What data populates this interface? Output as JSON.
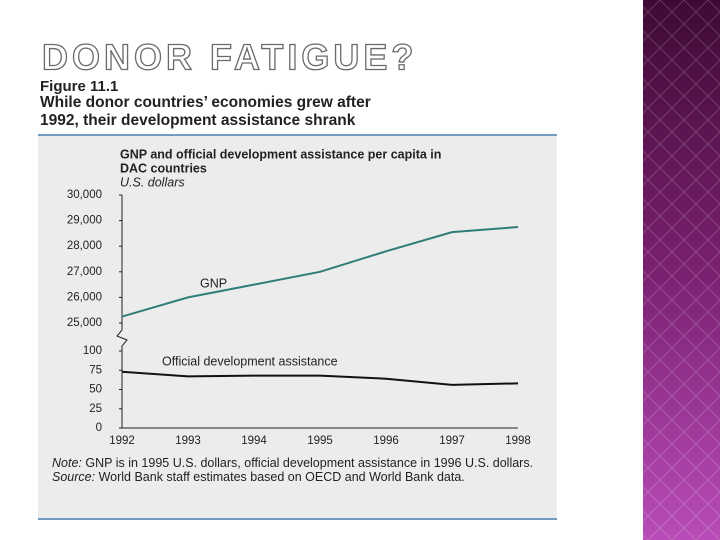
{
  "slide_title": "DONOR FATIGUE?",
  "figure_label": "Figure 11.1",
  "caption": [
    "While donor countries’ economies grew after",
    "1992, their development assistance shrank"
  ],
  "notes": [
    {
      "label": "Note:",
      "text": "GNP is in 1995 U.S. dollars, official development assistance in 1996 U.S. dollars."
    },
    {
      "label": "Source:",
      "text": "World Bank staff estimates based on OECD and World Bank data."
    }
  ],
  "chart_data": {
    "type": "line",
    "title": [
      "GNP and official development assistance per capita in",
      "DAC countries"
    ],
    "y_label": "U.S. dollars",
    "x": [
      1992,
      1993,
      1994,
      1995,
      1996,
      1997,
      1998
    ],
    "xlim": [
      1992,
      1998
    ],
    "ylim": [
      25000,
      30000
    ],
    "yticks": [
      {
        "value": 25000,
        "label": "25,000"
      },
      {
        "value": 26000,
        "label": "26,000"
      },
      {
        "value": 27000,
        "label": "27,000"
      },
      {
        "value": 28000,
        "label": "28,000"
      },
      {
        "value": 29000,
        "label": "29,000"
      },
      {
        "value": 30000,
        "label": "30,000"
      }
    ],
    "y2lim": [
      0,
      100
    ],
    "y2ticks": [
      0,
      25,
      50,
      75,
      100
    ],
    "series": [
      {
        "name": "GNP",
        "color": "#2f7d7a",
        "values": [
          25250,
          26000,
          26500,
          27000,
          27800,
          28550,
          28750
        ]
      },
      {
        "name": "Official development assistance",
        "color": "#111111",
        "axis": "y2",
        "values": [
          73,
          67,
          68,
          68,
          64,
          56,
          58
        ]
      }
    ]
  }
}
